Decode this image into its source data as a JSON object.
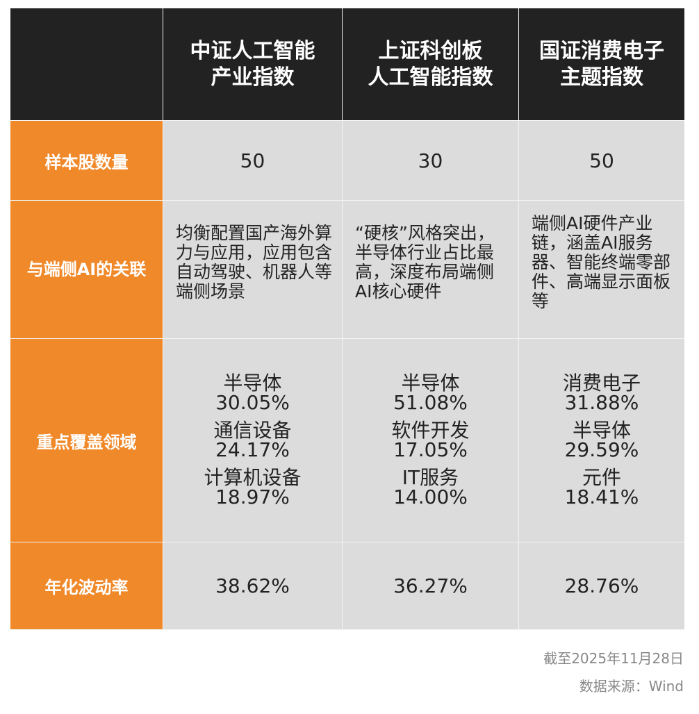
{
  "table": {
    "header": [
      "中证人工智能产业指数",
      "上证科创板人工智能指数",
      "国证消费电子主题指数"
    ],
    "header_lines": [
      [
        "中证人工智能",
        "产业指数"
      ],
      [
        "上证科创板",
        "人工智能指数"
      ],
      [
        "国证消费电子",
        "主题指数"
      ]
    ],
    "rows": [
      {
        "label": "样本股数量",
        "cells": [
          50,
          30,
          50
        ]
      },
      {
        "label": "与端侧AI的关联",
        "cells": [
          "均衡配置国产海外算力与应用，应用包含自动驾驶、机器人等端侧场景",
          "“硬核”风格突出，半导体行业占比最高，深度布局端侧AI核心硬件",
          "端侧AI硬件产业链，涵盖AI服务器、智能终端零部件、高端显示面板等"
        ]
      },
      {
        "label": "重点覆盖领域",
        "cells": [
          [
            {
              "sector": "半导体",
              "share": "30.05%"
            },
            {
              "sector": "通信设备",
              "share": "24.17%"
            },
            {
              "sector": "计算机设备",
              "share": "18.97%"
            }
          ],
          [
            {
              "sector": "半导体",
              "share": "51.08%"
            },
            {
              "sector": "软件开发",
              "share": "17.05%"
            },
            {
              "sector": "IT服务",
              "share": "14.00%"
            }
          ],
          [
            {
              "sector": "消费电子",
              "share": "31.88%"
            },
            {
              "sector": "半导体",
              "share": "29.59%"
            },
            {
              "sector": "元件",
              "share": "18.41%"
            }
          ]
        ]
      },
      {
        "label": "年化波动率",
        "cells": [
          "38.62%",
          "36.27%",
          "28.76%"
        ]
      }
    ]
  },
  "footer": {
    "date": "截至2025年11月28日",
    "source": "数据来源：Wind"
  }
}
